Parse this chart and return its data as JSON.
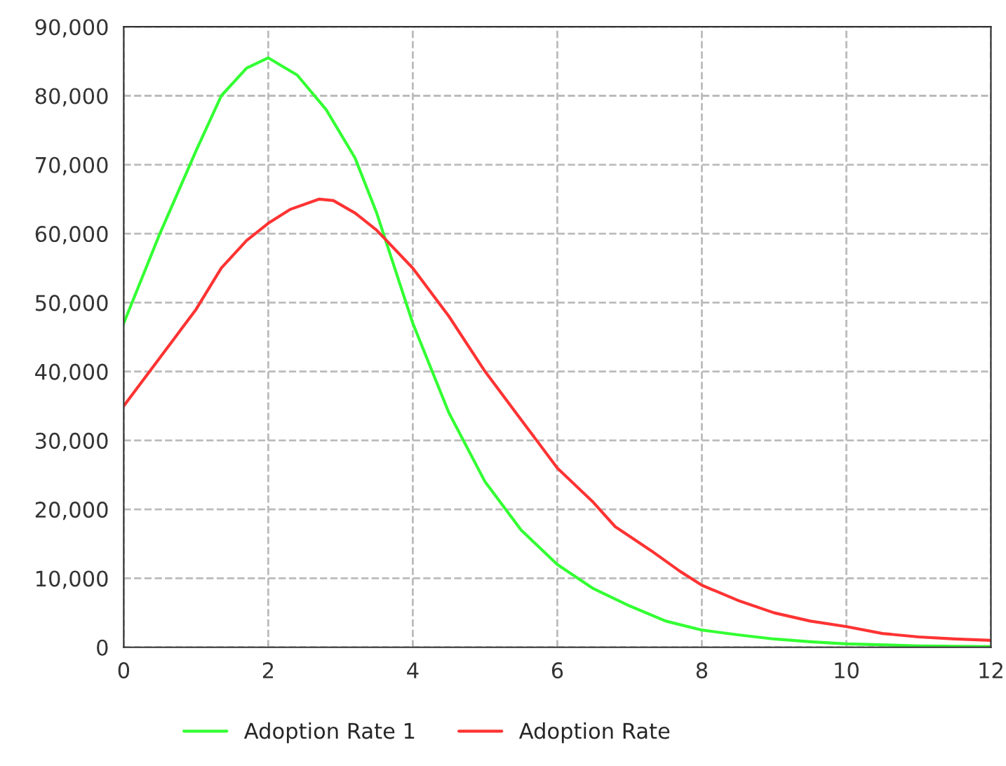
{
  "chart_data": {
    "type": "line",
    "series": [
      {
        "name": "Adoption Rate 1",
        "color": "#33ff33",
        "x": [
          0,
          0.5,
          1,
          1.35,
          1.7,
          2,
          2.4,
          2.8,
          3.2,
          3.5,
          4,
          4.5,
          5,
          5.5,
          6,
          6.5,
          7,
          7.5,
          8,
          8.5,
          9,
          9.5,
          10,
          11,
          12
        ],
        "values": [
          47000,
          60000,
          72000,
          80000,
          84000,
          85500,
          83000,
          78000,
          71000,
          63000,
          47000,
          34000,
          24000,
          17000,
          12000,
          8500,
          6000,
          3800,
          2500,
          1800,
          1200,
          800,
          500,
          200,
          100
        ]
      },
      {
        "name": "Adoption Rate",
        "color": "#ff3333",
        "x": [
          0,
          0.5,
          1,
          1.35,
          1.7,
          2,
          2.3,
          2.7,
          2.9,
          3.2,
          3.5,
          4,
          4.5,
          5,
          5.5,
          6,
          6.5,
          6.8,
          7.3,
          7.7,
          8,
          8.5,
          9,
          9.5,
          10,
          10.5,
          11,
          11.5,
          12
        ],
        "values": [
          35000,
          42000,
          49000,
          55000,
          59000,
          61500,
          63500,
          65000,
          64800,
          63000,
          60500,
          55000,
          48000,
          40000,
          33000,
          26000,
          21000,
          17500,
          14000,
          11000,
          9000,
          6800,
          5000,
          3800,
          3000,
          2000,
          1500,
          1200,
          1000
        ]
      }
    ],
    "xlim": [
      0,
      12
    ],
    "xticks": [
      0,
      2,
      4,
      6,
      8,
      10,
      12
    ],
    "ylim": [
      0,
      90000
    ],
    "yticks": [
      {
        "value": 0,
        "label": "0"
      },
      {
        "value": 10000,
        "label": "10,000"
      },
      {
        "value": 20000,
        "label": "20,000"
      },
      {
        "value": 30000,
        "label": "30,000"
      },
      {
        "value": 40000,
        "label": "40,000"
      },
      {
        "value": 50000,
        "label": "50,000"
      },
      {
        "value": 60000,
        "label": "60,000"
      },
      {
        "value": 70000,
        "label": "70,000"
      },
      {
        "value": 80000,
        "label": "80,000"
      },
      {
        "value": 90000,
        "label": "90,000"
      }
    ],
    "grid": true,
    "legend": "bottom",
    "line_style": "solid",
    "marker": "none"
  }
}
